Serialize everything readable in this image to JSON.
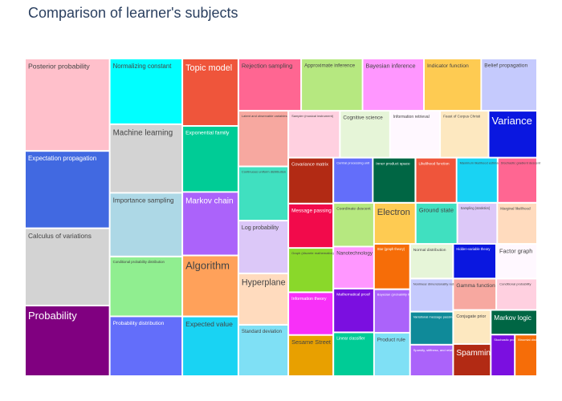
{
  "title": "Comparison of learner's subjects",
  "chart_data": {
    "type": "treemap",
    "title": "Comparison of learner's subjects",
    "tiles": [
      {
        "label": "Posterior probability",
        "color": "#ffc0cb",
        "weight": 110
      },
      {
        "label": "Expectation propagation",
        "color": "#4169e1",
        "weight": 92
      },
      {
        "label": "Calculus of variations",
        "color": "#d3d3d3",
        "weight": 92
      },
      {
        "label": "Probability",
        "color": "#800080",
        "weight": 84
      },
      {
        "label": "Normalizing constant",
        "color": "#00ffff",
        "weight": 67
      },
      {
        "label": "Machine learning",
        "color": "#d3d3d3",
        "weight": 70
      },
      {
        "label": "Importance sampling",
        "color": "#add8e6",
        "weight": 65
      },
      {
        "label": "Conditional probability distribution",
        "color": "#90ee90",
        "weight": 61
      },
      {
        "label": "Probability distribution",
        "color": "#636efa",
        "weight": 61
      },
      {
        "label": "Topic model",
        "color": "#ef553b",
        "weight": 53
      },
      {
        "label": "Exponential family",
        "color": "#00cc96",
        "weight": 52
      },
      {
        "label": "Markov chain",
        "color": "#ab63fa",
        "weight": 50
      },
      {
        "label": "Algorithm",
        "color": "#ffa15a",
        "weight": 48
      },
      {
        "label": "Expected value",
        "color": "#19d3f3",
        "weight": 47
      },
      {
        "label": "Rejection sampling",
        "color": "#ff6692",
        "weight": 46
      },
      {
        "label": "Approximate inference",
        "color": "#b6e880",
        "weight": 45
      },
      {
        "label": "Bayesian inference",
        "color": "#ff97ff",
        "weight": 45
      },
      {
        "label": "Indicator function",
        "color": "#fecb52",
        "weight": 42
      },
      {
        "label": "Belief propagation",
        "color": "#c5cafd",
        "weight": 41
      },
      {
        "label": "Latent and observable variables",
        "color": "#f7a8a0",
        "weight": 39
      },
      {
        "label": "Continuous uniform distribution",
        "color": "#40e0c0",
        "weight": 38
      },
      {
        "label": "Log probability",
        "color": "#dcc8f8",
        "weight": 37
      },
      {
        "label": "Hyperplane",
        "color": "#ffdbbe",
        "weight": 36
      },
      {
        "label": "Standard deviation",
        "color": "#7fe0f5",
        "weight": 36
      },
      {
        "label": "Sampler (musical instrument)",
        "color": "#ffd0e0",
        "weight": 34
      },
      {
        "label": "Cognitive science",
        "color": "#e6f5d8",
        "weight": 33
      },
      {
        "label": "Information retrieval",
        "color": "#fff8ff",
        "weight": 33
      },
      {
        "label": "Feast of Corpus Christi",
        "color": "#fde8c0",
        "weight": 32
      },
      {
        "label": "Variance",
        "color": "#0a17e0",
        "weight": 32
      },
      {
        "label": "Covariance matrix",
        "color": "#b22a14",
        "weight": 29
      },
      {
        "label": "Message passing",
        "color": "#f20a4b",
        "weight": 28
      },
      {
        "label": "Graph (discrete mathematics)",
        "color": "#8ad82a",
        "weight": 28
      },
      {
        "label": "Information theory",
        "color": "#f830f8",
        "weight": 27
      },
      {
        "label": "Sesame Street",
        "color": "#e8a000",
        "weight": 26
      },
      {
        "label": "Central processing unit",
        "color": "#636efa",
        "weight": 25
      },
      {
        "label": "Inner product space",
        "color": "#006644",
        "weight": 27
      },
      {
        "label": "Likelihood function",
        "color": "#ef553b",
        "weight": 26
      },
      {
        "label": "Maximum likelihood estimation",
        "color": "#19d3f3",
        "weight": 26
      },
      {
        "label": "Stochastic gradient descent",
        "color": "#ff6692",
        "weight": 25
      },
      {
        "label": "Coordinate descent",
        "color": "#b6e880",
        "weight": 25
      },
      {
        "label": "Nanotechnology",
        "color": "#ff97ff",
        "weight": 24
      },
      {
        "label": "Mathematical proof",
        "color": "#7b0fe0",
        "weight": 25
      },
      {
        "label": "Linear classifier",
        "color": "#00cc96",
        "weight": 25
      },
      {
        "label": "Electron",
        "color": "#fecb52",
        "weight": 24
      },
      {
        "label": "Ground state",
        "color": "#40e0c0",
        "weight": 24
      },
      {
        "label": "Sampling (statistics)",
        "color": "#dcc8f8",
        "weight": 23
      },
      {
        "label": "Marginal likelihood",
        "color": "#ffdbbe",
        "weight": 23
      },
      {
        "label": "Star (graph theory)",
        "color": "#f66d08",
        "weight": 23
      },
      {
        "label": "Bayesian (probability theory)",
        "color": "#ab63fa",
        "weight": 22
      },
      {
        "label": "Product rule",
        "color": "#7fe0f5",
        "weight": 22
      },
      {
        "label": "Normal distribution",
        "color": "#e6f5d8",
        "weight": 21
      },
      {
        "label": "Hidden-variable theory",
        "color": "#0a17e0",
        "weight": 21
      },
      {
        "label": "Factor graph",
        "color": "#fff8ff",
        "weight": 20
      },
      {
        "label": "Nonlinear dimensionality reduction",
        "color": "#c5cafd",
        "weight": 20
      },
      {
        "label": "Variational message passing",
        "color": "#0f8a99",
        "weight": 20
      },
      {
        "label": "Sparsity, stiffness, and related work",
        "color": "#ab63fa",
        "weight": 19
      },
      {
        "label": "Gamma function",
        "color": "#f7a8a0",
        "weight": 19
      },
      {
        "label": "Conditional probability",
        "color": "#ffd0e0",
        "weight": 18
      },
      {
        "label": "Conjugate prior",
        "color": "#fde8c0",
        "weight": 18
      },
      {
        "label": "Spamming",
        "color": "#b22a14",
        "weight": 17
      },
      {
        "label": "Markov logic",
        "color": "#006644",
        "weight": 16
      },
      {
        "label": "Stochastic process",
        "color": "#7b0fe0",
        "weight": 14
      },
      {
        "label": "Binomial distribution",
        "color": "#f66d08",
        "weight": 13
      }
    ]
  }
}
